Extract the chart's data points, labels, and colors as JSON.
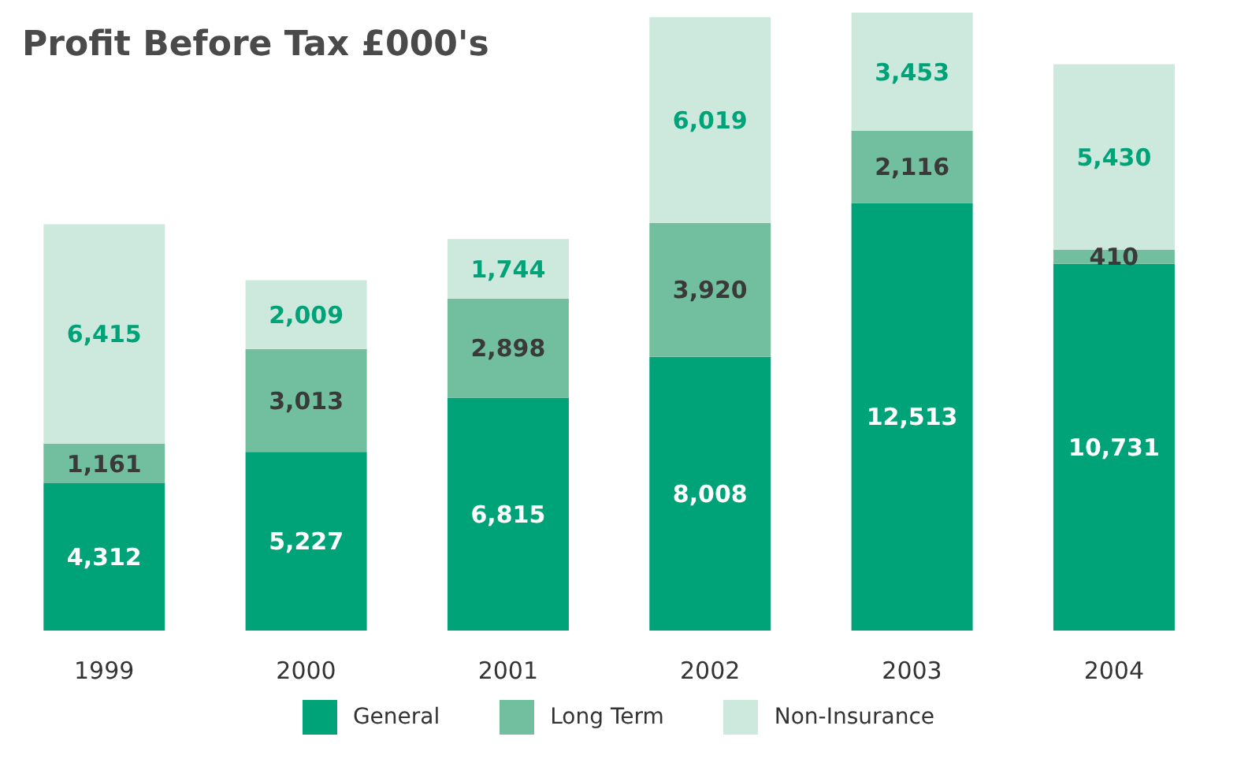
{
  "chart_data": {
    "type": "bar",
    "title": "Profit Before Tax £000's",
    "categories": [
      "1999",
      "2000",
      "2001",
      "2002",
      "2003",
      "2004"
    ],
    "stacked": true,
    "legend": "bottom",
    "grid": false,
    "series": [
      {
        "name": "General",
        "color": "#00a278",
        "values": [
          4312,
          5227,
          6815,
          8008,
          12513,
          10731
        ],
        "value_labels": [
          "4,312",
          "5,227",
          "6,815",
          "8,008",
          "12,513",
          "10,731"
        ]
      },
      {
        "name": "Long Term",
        "color": "#72bf9f",
        "values": [
          1161,
          3013,
          2898,
          3920,
          2116,
          410
        ],
        "value_labels": [
          "1,161",
          "3,013",
          "2,898",
          "3,920",
          "2,116",
          "410"
        ]
      },
      {
        "name": "Non-Insurance",
        "color": "#cde8dc",
        "values": [
          6415,
          2009,
          1744,
          6019,
          3453,
          5430
        ],
        "value_labels": [
          "6,415",
          "2,009",
          "1,744",
          "6,019",
          "3,453",
          "5,430"
        ]
      }
    ]
  }
}
